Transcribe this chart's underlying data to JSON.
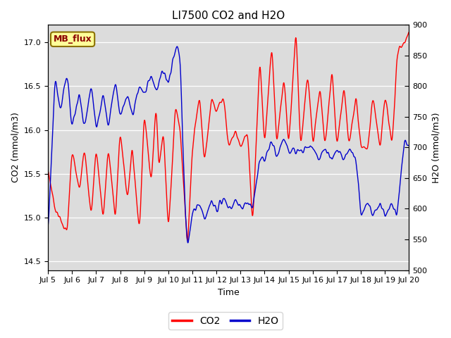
{
  "title": "LI7500 CO2 and H2O",
  "xlabel": "Time",
  "ylabel_left": "CO2 (mmol/m3)",
  "ylabel_right": "H2O (mmol/m3)",
  "ylim_left": [
    14.4,
    17.2
  ],
  "ylim_right": [
    500,
    900
  ],
  "co2_color": "#FF0000",
  "h2o_color": "#0000CC",
  "bg_color": "#DCDCDC",
  "fig_bg_color": "#FFFFFF",
  "annotation_text": "MB_flux",
  "annotation_bg": "#FFFF99",
  "annotation_edge": "#8B7000",
  "legend_co2": "CO2",
  "legend_h2o": "H2O",
  "xtick_labels": [
    "Jul 5",
    "Jul 6",
    "Jul 7",
    "Jul 8",
    "Jul 9",
    "Jul 10",
    "Jul 11",
    "Jul 12",
    "Jul 13",
    "Jul 14",
    "Jul 15",
    "Jul 16",
    "Jul 17",
    "Jul 18",
    "Jul 19",
    "Jul 20"
  ],
  "line_width": 1.0,
  "title_fontsize": 11,
  "label_fontsize": 9,
  "tick_fontsize": 8
}
